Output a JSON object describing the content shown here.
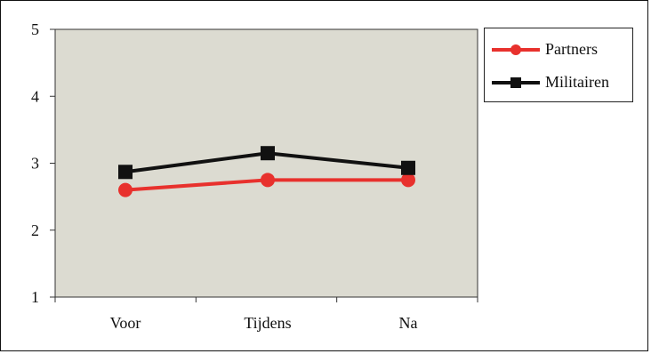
{
  "chart_data": {
    "type": "line",
    "categories": [
      "Voor",
      "Tijdens",
      "Na"
    ],
    "series": [
      {
        "name": "Partners",
        "values": [
          2.6,
          2.75,
          2.75
        ],
        "color": "#e8312d",
        "marker": "circle"
      },
      {
        "name": "Militairen",
        "values": [
          2.87,
          3.15,
          2.93
        ],
        "color": "#111111",
        "marker": "square"
      }
    ],
    "ylim": [
      1,
      5
    ],
    "yticks": [
      "1",
      "2",
      "3",
      "4",
      "5"
    ],
    "plot_background": "#dcdbd1",
    "grid": false,
    "legend": "right"
  }
}
